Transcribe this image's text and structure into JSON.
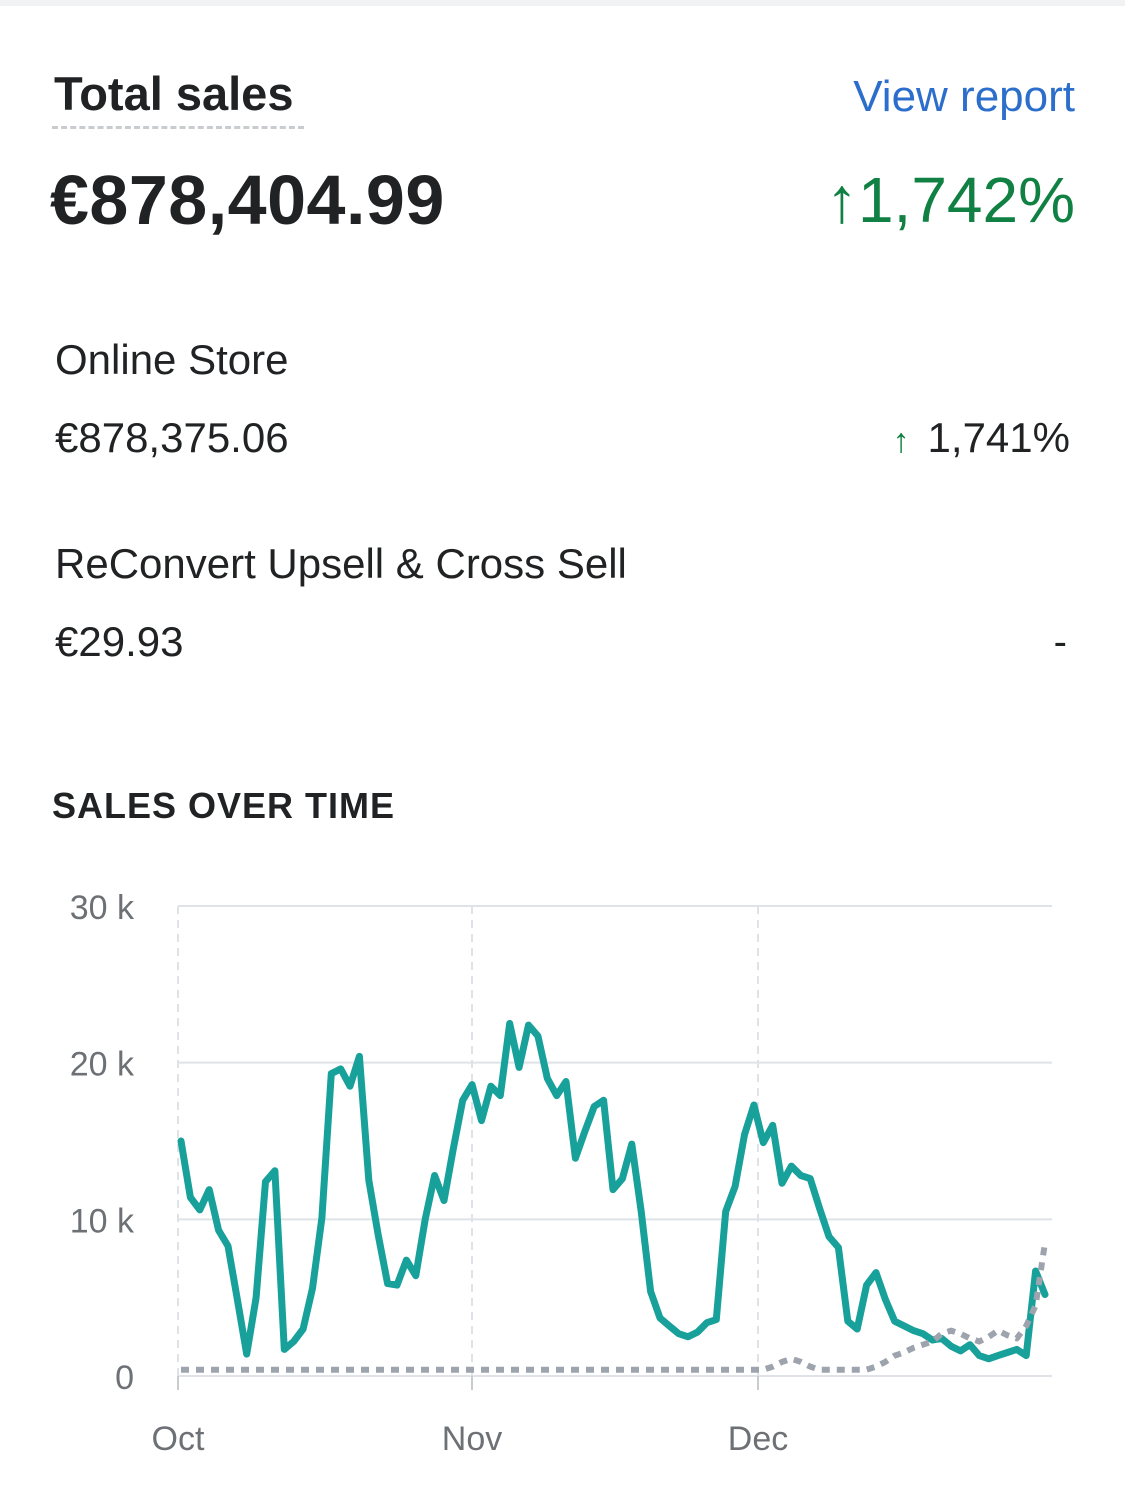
{
  "card": {
    "title": "Total sales",
    "view_report_label": "View report",
    "total_value": "€878,404.99",
    "total_change": "↑1,742%"
  },
  "channels": [
    {
      "name": "Online Store",
      "value": "€878,375.06",
      "change_arrow": "↑",
      "change": "1,741%"
    },
    {
      "name": "ReConvert Upsell & Cross Sell",
      "value": "€29.93",
      "change": "-"
    }
  ],
  "section": {
    "title": "SALES OVER TIME"
  },
  "colors": {
    "current": "#18a09a",
    "previous": "#9ea4ad",
    "positive": "#108043",
    "link": "#2c6ecb"
  },
  "chart_data": {
    "type": "line",
    "x_labels": [
      "Oct",
      "Nov",
      "Dec"
    ],
    "y_ticks": [
      0,
      10000,
      20000,
      30000
    ],
    "y_tick_labels": [
      "0",
      "10 k",
      "20 k",
      "30 k"
    ],
    "ylim": [
      0,
      30000
    ],
    "grid": true,
    "series": [
      {
        "style": "solid",
        "values": [
          15000,
          11400,
          10600,
          11900,
          9300,
          8300,
          4900,
          1400,
          5000,
          12400,
          13100,
          1700,
          2200,
          3000,
          5600,
          10100,
          19300,
          19600,
          18500,
          20400,
          12500,
          9000,
          5900,
          5800,
          7400,
          6400,
          10000,
          12800,
          11200,
          14500,
          17600,
          18600,
          16300,
          18500,
          17900,
          22500,
          19700,
          22400,
          21700,
          19000,
          17900,
          18800,
          13900,
          15600,
          17200,
          17600,
          11900,
          12600,
          14800,
          10500,
          5400,
          3700,
          3200,
          2700,
          2500,
          2800,
          3400,
          3600,
          10500,
          12100,
          15400,
          17300,
          14900,
          16000,
          12300,
          13400,
          12800,
          12600,
          10700,
          8900,
          8200,
          3500,
          3000,
          5800,
          6600,
          4900,
          3500,
          3200,
          2900,
          2700,
          2300,
          2400,
          1900,
          1600,
          2000,
          1300,
          1100,
          1300,
          1500,
          1700,
          1300,
          6700,
          5200
        ]
      },
      {
        "style": "dotted",
        "values": [
          400,
          400,
          400,
          400,
          400,
          400,
          400,
          400,
          400,
          400,
          400,
          400,
          400,
          400,
          400,
          400,
          400,
          400,
          400,
          400,
          400,
          400,
          400,
          400,
          400,
          400,
          400,
          400,
          400,
          400,
          400,
          400,
          400,
          400,
          400,
          400,
          400,
          400,
          400,
          400,
          400,
          400,
          400,
          400,
          400,
          400,
          400,
          400,
          400,
          400,
          400,
          400,
          400,
          400,
          400,
          400,
          400,
          400,
          400,
          400,
          400,
          400,
          400,
          600,
          900,
          1100,
          900,
          600,
          400,
          400,
          400,
          400,
          400,
          400,
          600,
          900,
          1300,
          1500,
          1800,
          2000,
          2200,
          2700,
          2900,
          2700,
          2400,
          2200,
          2500,
          2900,
          2600,
          2400,
          3200,
          4500,
          8500
        ]
      }
    ]
  }
}
